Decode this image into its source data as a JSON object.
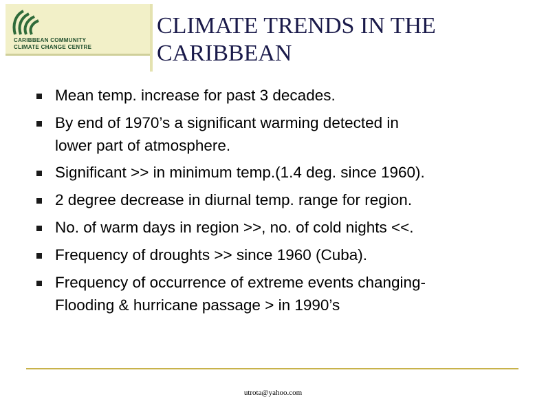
{
  "logo": {
    "emblem_icon": "caribbean-community-emblem-icon",
    "line1": "CARIBBEAN COMMUNITY",
    "line2": "CLIMATE CHANGE CENTRE",
    "colors": {
      "background": "#f2f0c8",
      "emblem": "#2f6b3a"
    }
  },
  "slide": {
    "title_line1": "CLIMATE TRENDS IN THE",
    "title_line2": "CARIBBEAN",
    "bullets": [
      {
        "line1": "Mean temp. increase for past 3 decades."
      },
      {
        "line1": "By end of 1970’s a significant warming detected in",
        "line2": "lower part of atmosphere."
      },
      {
        "line1": "Significant >> in minimum temp.(1.4 deg. since 1960)."
      },
      {
        "line1": "2 degree decrease in diurnal temp. range for region."
      },
      {
        "line1": "No. of warm days in region >>, no. of cold nights <<."
      },
      {
        "line1": "Frequency of droughts >> since 1960 (Cuba)."
      },
      {
        "line1": "Frequency of occurrence of extreme events changing-",
        "line2": "Flooding & hurricane passage > in 1990’s"
      }
    ]
  },
  "footer": {
    "email": "utrota@yahoo.com",
    "rule_color": "#c8b24a"
  }
}
